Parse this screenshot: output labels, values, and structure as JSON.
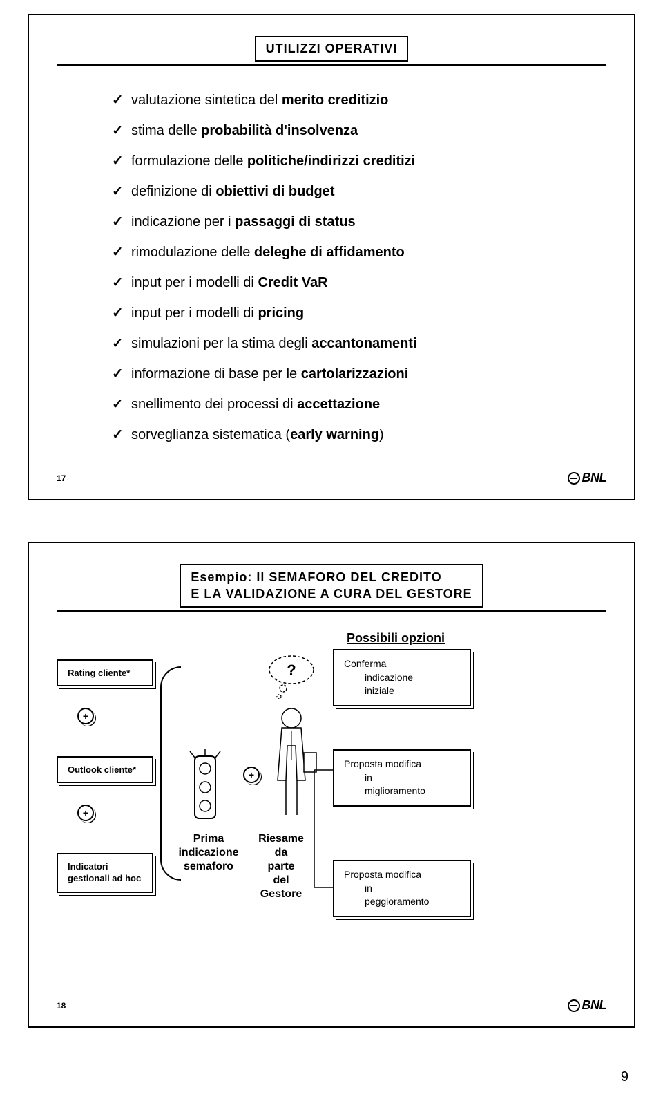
{
  "slide1": {
    "title": "UTILIZZI OPERATIVI",
    "items": [
      {
        "pre": "valutazione sintetica del ",
        "bold": "merito creditizio",
        "post": ""
      },
      {
        "pre": "stima delle ",
        "bold": "probabilità d'insolvenza",
        "post": ""
      },
      {
        "pre": "formulazione delle ",
        "bold": "politiche/indirizzi creditizi",
        "post": ""
      },
      {
        "pre": "definizione di ",
        "bold": "obiettivi di budget",
        "post": ""
      },
      {
        "pre": "indicazione per i ",
        "bold": "passaggi di status",
        "post": ""
      },
      {
        "pre": "rimodulazione delle ",
        "bold": "deleghe di affidamento",
        "post": ""
      },
      {
        "pre": "input per i modelli di ",
        "bold": "Credit VaR",
        "post": ""
      },
      {
        "pre": "input per i modelli di ",
        "bold": "pricing",
        "post": ""
      },
      {
        "pre": "simulazioni per la stima degli ",
        "bold": "accantonamenti",
        "post": ""
      },
      {
        "pre": "informazione di base per le ",
        "bold": "cartolarizzazioni",
        "post": ""
      },
      {
        "pre": "snellimento dei processi di ",
        "bold": "accettazione",
        "post": ""
      },
      {
        "pre": "sorveglianza sistematica (",
        "bold": "early warning",
        "post": ")"
      }
    ],
    "page": "17",
    "logo": "BNL"
  },
  "slide2": {
    "title_l1": "Esempio: Il SEMAFORO DEL CREDITO",
    "title_l2": "E LA VALIDAZIONE A CURA DEL GESTORE",
    "options_label": "Possibili opzioni",
    "rating": "Rating cliente*",
    "outlook": "Outlook cliente*",
    "indicatori_l1": "Indicatori",
    "indicatori_l2": "gestionali ad hoc",
    "plus": "+",
    "question": "?",
    "prima_l1": "Prima",
    "prima_l2": "indicazione",
    "prima_l3": "semaforo",
    "riesame_l1": "Riesame",
    "riesame_l2": "da",
    "riesame_l3": "parte",
    "riesame_l4": "del",
    "riesame_l5": "Gestore",
    "conferma_l1": "Conferma",
    "conferma_l2": "indicazione",
    "conferma_l3": "iniziale",
    "miglio_l1": "Proposta modifica",
    "miglio_l2": "in",
    "miglio_l3": "miglioramento",
    "peggio_l1": "Proposta modifica",
    "peggio_l2": "in",
    "peggio_l3": "peggioramento",
    "page": "18",
    "logo": "BNL"
  },
  "page_number": "9",
  "colors": {
    "border": "#000000",
    "bg": "#ffffff",
    "text": "#000000"
  }
}
